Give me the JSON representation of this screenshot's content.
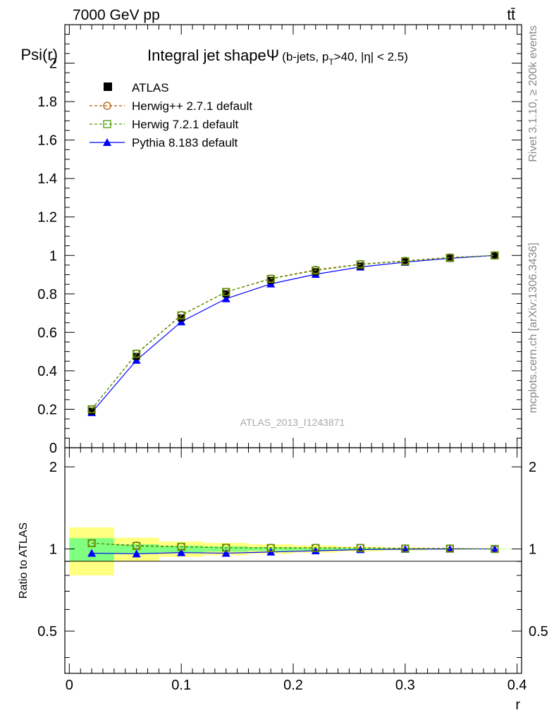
{
  "header": {
    "energy_label": "7000 GeV pp",
    "process_label": "tt̄"
  },
  "side_labels": {
    "rivet": "Rivet 3.1.10, ≥ 200k events",
    "mcplots": "mcplots.cern.ch [arXiv:1306.3436]"
  },
  "colors": {
    "data": "#000000",
    "herwigpp": "#b35900",
    "herwig7": "#4a9a00",
    "pythia": "#0000ff",
    "band_outer": "#ffff80",
    "band_inner": "#80ff80"
  },
  "chart_data": [
    {
      "type": "line",
      "title_main": "Integral jet shape",
      "title_symbol": "Ψ",
      "title_sub_pre": "(b-jets, p",
      "title_sub_T": "T",
      "title_sub_post": ">40, |η| < 2.5)",
      "watermark": "ATLAS_2013_I1243871",
      "ylabel": "Psi(r)",
      "xlabel": "r",
      "xlim": [
        -0.004,
        0.404
      ],
      "ylim": [
        0,
        2.2
      ],
      "yticks": [
        0,
        0.2,
        0.4,
        0.6,
        0.8,
        1,
        1.2,
        1.4,
        1.6,
        1.8,
        2
      ],
      "ytick_labels": [
        "0",
        "0.2",
        "0.4",
        "0.6",
        "0.8",
        "1",
        "1.2",
        "1.4",
        "1.6",
        "1.8",
        "2"
      ],
      "x": [
        0.02,
        0.06,
        0.1,
        0.14,
        0.18,
        0.22,
        0.26,
        0.3,
        0.34,
        0.38
      ],
      "legend": [
        "ATLAS",
        "Herwig++ 2.7.1 default",
        "Herwig 7.2.1 default",
        "Pythia 8.183 default"
      ],
      "series": [
        {
          "name": "ATLAS",
          "values": [
            0.19,
            0.475,
            0.675,
            0.8,
            0.87,
            0.915,
            0.945,
            0.967,
            0.985,
            1.0
          ]
        },
        {
          "name": "Herwig++ 2.7.1 default",
          "values": [
            0.2,
            0.49,
            0.69,
            0.81,
            0.88,
            0.925,
            0.955,
            0.972,
            0.99,
            1.0
          ]
        },
        {
          "name": "Herwig 7.2.1 default",
          "values": [
            0.2,
            0.488,
            0.688,
            0.81,
            0.878,
            0.922,
            0.953,
            0.97,
            0.988,
            1.0
          ]
        },
        {
          "name": "Pythia 8.183 default",
          "values": [
            0.183,
            0.455,
            0.655,
            0.775,
            0.852,
            0.902,
            0.94,
            0.965,
            0.985,
            1.0
          ]
        }
      ]
    },
    {
      "type": "line",
      "ylabel": "Ratio to ATLAS",
      "xlabel": "r",
      "xlim": [
        -0.004,
        0.404
      ],
      "ylim": [
        0.35,
        2.35
      ],
      "yticks": [
        0.5,
        1,
        2
      ],
      "ytick_labels": [
        "0.5",
        "1",
        "2"
      ],
      "xticks": [
        0,
        0.1,
        0.2,
        0.3,
        0.4
      ],
      "xtick_labels": [
        "0",
        "0.1",
        "0.2",
        "0.3",
        "0.4"
      ],
      "x": [
        0.02,
        0.06,
        0.1,
        0.14,
        0.18,
        0.22,
        0.26,
        0.3,
        0.34,
        0.38
      ],
      "bin_edges": [
        0,
        0.04,
        0.08,
        0.12,
        0.16,
        0.2,
        0.24,
        0.28,
        0.32,
        0.36,
        0.4
      ],
      "band_inner_halfwidth": [
        0.095,
        0.04,
        0.028,
        0.022,
        0.016,
        0.012,
        0.008,
        0.005,
        0.003,
        0.001
      ],
      "band_outer_halfwidth": [
        0.2,
        0.1,
        0.065,
        0.052,
        0.04,
        0.03,
        0.02,
        0.012,
        0.006,
        0.002
      ],
      "series": [
        {
          "name": "Herwig++ 2.7.1 default",
          "values": [
            1.05,
            1.03,
            1.02,
            1.01,
            1.01,
            1.01,
            1.01,
            1.005,
            1.005,
            1.0
          ]
        },
        {
          "name": "Herwig 7.2.1 default",
          "values": [
            1.05,
            1.025,
            1.018,
            1.01,
            1.008,
            1.008,
            1.008,
            1.003,
            1.003,
            1.0
          ]
        },
        {
          "name": "Pythia 8.183 default",
          "values": [
            0.965,
            0.96,
            0.97,
            0.965,
            0.975,
            0.985,
            0.995,
            0.998,
            1.0,
            1.0
          ]
        }
      ]
    }
  ]
}
